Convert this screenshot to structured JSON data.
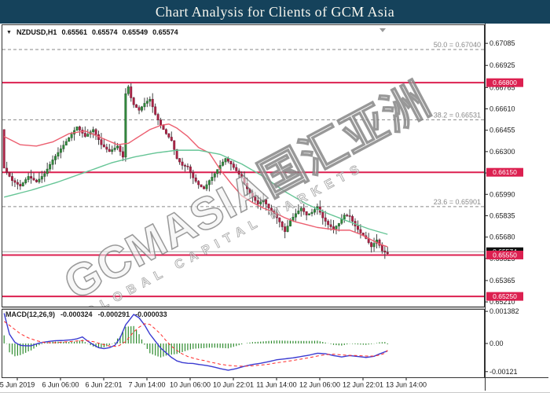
{
  "title_bar": {
    "title": "Chart Analysis for Clients of GCM Asia"
  },
  "symbol_row": {
    "dropdown_icon": "▼",
    "symbol": "NZDUSD,H1",
    "open": "0.65561",
    "high": "0.65574",
    "low": "0.65549",
    "close": "0.65574"
  },
  "watermark": {
    "brand": "GCMASIA国汇亚洲",
    "subtitle": "GLOBAL CAPITAL MARKETS"
  },
  "colors": {
    "titlebar_bg": "#15425b",
    "bull": "#338a3e",
    "bull_stroke": "#1d5b26",
    "bear": "#b02445",
    "bear_stroke": "#701532",
    "wick": "#444444",
    "ma_fast_red": "#ec5f70",
    "ma_slow_green": "#66c596",
    "hline_red": "#dc2050",
    "fib_gray": "#8a8a8a",
    "current_line_gray": "#a8a8a8",
    "macd_main_blue": "#3b3bd1",
    "macd_signal_red": "#ff2a2a",
    "macd_hist_green": "#2e8b2e",
    "badge_current_bg": "#111111",
    "badge_text": "#ffffff",
    "axis_text": "#1a1a1a",
    "border": "#333333"
  },
  "chart_data": [
    {
      "type": "candlestick",
      "title": "NZDUSD hourly price with moving averages, horizontal levels and Fibonacci retracements",
      "y_ticks": [
        "0.67085",
        "0.66925",
        "0.66765",
        "0.66610",
        "0.66455",
        "0.66300",
        "0.66145",
        "0.65990",
        "0.65835",
        "0.65680",
        "0.65525",
        "0.65365",
        "0.65210"
      ],
      "hlines": [
        "0.66800",
        "0.66150",
        "0.65550",
        "0.65250"
      ],
      "current_price": "0.65574",
      "fib_levels": [
        {
          "label": "50.0 = 0.67040",
          "value": 0.6704
        },
        {
          "label": "38.2 = 0.66531",
          "value": 0.66531
        },
        {
          "label": "23.6 = 0.65901",
          "value": 0.65901
        }
      ],
      "x_labels": [
        "5 Jun 2019",
        "6 Jun 06:00",
        "6 Jun 22:01",
        "7 Jun 14:00",
        "10 Jun 06:00",
        "10 Jun 22:01",
        "11 Jun 14:00",
        "12 Jun 06:00",
        "12 Jun 22:01",
        "13 Jun 14:00"
      ],
      "candle_count": 143,
      "first_open": 0.6646,
      "wick_amplitude": 0.0005,
      "close_anchors": [
        [
          0,
          0.6618
        ],
        [
          3,
          0.6609
        ],
        [
          6,
          0.6605
        ],
        [
          9,
          0.6612
        ],
        [
          12,
          0.6608
        ],
        [
          15,
          0.6614
        ],
        [
          18,
          0.6624
        ],
        [
          21,
          0.6632
        ],
        [
          24,
          0.664
        ],
        [
          27,
          0.6648
        ],
        [
          30,
          0.6641
        ],
        [
          33,
          0.6646
        ],
        [
          36,
          0.6635
        ],
        [
          39,
          0.663
        ],
        [
          42,
          0.6634
        ],
        [
          44,
          0.6626
        ],
        [
          45,
          0.6672
        ],
        [
          46,
          0.6677
        ],
        [
          47,
          0.6669
        ],
        [
          48,
          0.6664
        ],
        [
          50,
          0.666
        ],
        [
          52,
          0.6665
        ],
        [
          54,
          0.6668
        ],
        [
          56,
          0.6657
        ],
        [
          58,
          0.6649
        ],
        [
          60,
          0.6643
        ],
        [
          62,
          0.6638
        ],
        [
          64,
          0.6625
        ],
        [
          66,
          0.662
        ],
        [
          68,
          0.6619
        ],
        [
          70,
          0.6611
        ],
        [
          72,
          0.6606
        ],
        [
          74,
          0.6603
        ],
        [
          76,
          0.6609
        ],
        [
          78,
          0.6614
        ],
        [
          80,
          0.662
        ],
        [
          82,
          0.6625
        ],
        [
          84,
          0.6621
        ],
        [
          86,
          0.6616
        ],
        [
          88,
          0.6611
        ],
        [
          90,
          0.6603
        ],
        [
          92,
          0.6597
        ],
        [
          94,
          0.6592
        ],
        [
          96,
          0.6595
        ],
        [
          98,
          0.6589
        ],
        [
          100,
          0.6585
        ],
        [
          102,
          0.6579
        ],
        [
          104,
          0.6572
        ],
        [
          106,
          0.658
        ],
        [
          108,
          0.6585
        ],
        [
          110,
          0.6589
        ],
        [
          112,
          0.6584
        ],
        [
          114,
          0.6586
        ],
        [
          116,
          0.659
        ],
        [
          118,
          0.6582
        ],
        [
          120,
          0.6577
        ],
        [
          122,
          0.6574
        ],
        [
          124,
          0.6578
        ],
        [
          126,
          0.6584
        ],
        [
          128,
          0.6583
        ],
        [
          130,
          0.6576
        ],
        [
          132,
          0.6571
        ],
        [
          134,
          0.6567
        ],
        [
          136,
          0.6561
        ],
        [
          138,
          0.6566
        ],
        [
          140,
          0.6558
        ],
        [
          142,
          0.6556
        ]
      ],
      "ma_fast_anchors": [
        [
          0,
          0.6641
        ],
        [
          6,
          0.6635
        ],
        [
          12,
          0.6634
        ],
        [
          18,
          0.6637
        ],
        [
          24,
          0.6643
        ],
        [
          30,
          0.6645
        ],
        [
          36,
          0.664
        ],
        [
          42,
          0.6635
        ],
        [
          46,
          0.6636
        ],
        [
          50,
          0.6641
        ],
        [
          54,
          0.6646
        ],
        [
          58,
          0.6649
        ],
        [
          61,
          0.665
        ],
        [
          64,
          0.6647
        ],
        [
          68,
          0.6641
        ],
        [
          72,
          0.6633
        ],
        [
          76,
          0.6629
        ],
        [
          80,
          0.6617
        ],
        [
          84,
          0.6607
        ],
        [
          88,
          0.6598
        ],
        [
          92,
          0.6593
        ],
        [
          96,
          0.6589
        ],
        [
          100,
          0.6586
        ],
        [
          104,
          0.6582
        ],
        [
          108,
          0.6579
        ],
        [
          112,
          0.6577
        ],
        [
          116,
          0.6575
        ],
        [
          120,
          0.6574
        ],
        [
          124,
          0.6573
        ],
        [
          128,
          0.6573
        ],
        [
          132,
          0.657
        ],
        [
          136,
          0.6566
        ],
        [
          139,
          0.6563
        ],
        [
          142,
          0.6561
        ]
      ],
      "ma_slow_anchors": [
        [
          0,
          0.6597
        ],
        [
          10,
          0.6602
        ],
        [
          20,
          0.6608
        ],
        [
          30,
          0.6615
        ],
        [
          40,
          0.6622
        ],
        [
          48,
          0.6626
        ],
        [
          56,
          0.6629
        ],
        [
          64,
          0.6631
        ],
        [
          72,
          0.6631
        ],
        [
          80,
          0.6628
        ],
        [
          88,
          0.6621
        ],
        [
          96,
          0.6612
        ],
        [
          104,
          0.6601
        ],
        [
          112,
          0.6592
        ],
        [
          120,
          0.6585
        ],
        [
          128,
          0.6579
        ],
        [
          135,
          0.6574
        ],
        [
          142,
          0.657
        ]
      ]
    },
    {
      "type": "line+histogram",
      "label": "MACD(12,26,9)",
      "values": {
        "main": "-0.000324",
        "signal": "-0.000291",
        "histogram": "-0.000033"
      },
      "y_ticks": [
        "0.001382",
        "0.00",
        "-0.00121"
      ],
      "main_anchors": [
        [
          0,
          0.0013
        ],
        [
          2,
          0.0004
        ],
        [
          4,
          5e-05
        ],
        [
          6,
          -8e-05
        ],
        [
          8,
          -0.0001
        ],
        [
          10,
          -0.0001
        ],
        [
          13,
          2e-05
        ],
        [
          16,
          8e-05
        ],
        [
          19,
          0.00012
        ],
        [
          22,
          0.00013
        ],
        [
          25,
          0.00016
        ],
        [
          27,
          0.0002
        ],
        [
          29,
          0.00028
        ],
        [
          31,
          0.0001
        ],
        [
          33,
          -5e-05
        ],
        [
          35,
          -0.00018
        ],
        [
          37,
          -0.00022
        ],
        [
          39,
          -0.00018
        ],
        [
          41,
          -8e-05
        ],
        [
          43,
          0.00025
        ],
        [
          45,
          0.0008
        ],
        [
          47,
          0.0011
        ],
        [
          48,
          0.00125
        ],
        [
          50,
          0.0011
        ],
        [
          52,
          0.0008
        ],
        [
          54,
          0.0004
        ],
        [
          56,
          0.0001
        ],
        [
          58,
          -0.0002
        ],
        [
          60,
          -0.0004
        ],
        [
          62,
          -0.0006
        ],
        [
          64,
          -0.00075
        ],
        [
          66,
          -0.00082
        ],
        [
          68,
          -0.00085
        ],
        [
          70,
          -0.00086
        ],
        [
          72,
          -0.0009
        ],
        [
          74,
          -0.00093
        ],
        [
          76,
          -0.00097
        ],
        [
          78,
          -0.00102
        ],
        [
          80,
          -0.00108
        ],
        [
          83,
          -0.00115
        ],
        [
          86,
          -0.00108
        ],
        [
          89,
          -0.00098
        ],
        [
          92,
          -0.0009
        ],
        [
          95,
          -0.00085
        ],
        [
          98,
          -0.00078
        ],
        [
          101,
          -0.0007
        ],
        [
          104,
          -0.00066
        ],
        [
          107,
          -0.00062
        ],
        [
          110,
          -0.00056
        ],
        [
          113,
          -0.0005
        ],
        [
          116,
          -0.00042
        ],
        [
          119,
          -0.00044
        ],
        [
          122,
          -0.00052
        ],
        [
          125,
          -0.00058
        ],
        [
          128,
          -0.00052
        ],
        [
          131,
          -0.00056
        ],
        [
          134,
          -0.0006
        ],
        [
          137,
          -0.00055
        ],
        [
          139,
          -0.00045
        ],
        [
          141,
          -0.00036
        ],
        [
          142,
          -0.000324
        ]
      ],
      "signal_anchors": [
        [
          0,
          0.00095
        ],
        [
          2,
          0.00078
        ],
        [
          4,
          0.0006
        ],
        [
          6,
          0.00042
        ],
        [
          9,
          0.00024
        ],
        [
          12,
          0.00012
        ],
        [
          15,
          4e-05
        ],
        [
          18,
          3e-05
        ],
        [
          21,
          5e-05
        ],
        [
          24,
          8e-05
        ],
        [
          27,
          0.00011
        ],
        [
          30,
          0.00013
        ],
        [
          33,
          8e-05
        ],
        [
          36,
          -2e-05
        ],
        [
          39,
          -0.00011
        ],
        [
          42,
          -0.00013
        ],
        [
          45,
          8e-05
        ],
        [
          48,
          0.0005
        ],
        [
          50,
          0.0007
        ],
        [
          52,
          0.00085
        ],
        [
          54,
          0.00082
        ],
        [
          56,
          0.00062
        ],
        [
          58,
          0.0004
        ],
        [
          60,
          0.00012
        ],
        [
          62,
          -0.00012
        ],
        [
          64,
          -0.0003
        ],
        [
          66,
          -0.00045
        ],
        [
          68,
          -0.00056
        ],
        [
          70,
          -0.00063
        ],
        [
          72,
          -0.00069
        ],
        [
          74,
          -0.00073
        ],
        [
          76,
          -0.00079
        ],
        [
          78,
          -0.00084
        ],
        [
          80,
          -0.00089
        ],
        [
          83,
          -0.00094
        ],
        [
          86,
          -0.00097
        ],
        [
          89,
          -0.00098
        ],
        [
          92,
          -0.00096
        ],
        [
          95,
          -0.00093
        ],
        [
          98,
          -0.00089
        ],
        [
          101,
          -0.00083
        ],
        [
          104,
          -0.00078
        ],
        [
          107,
          -0.00073
        ],
        [
          110,
          -0.00067
        ],
        [
          113,
          -0.00061
        ],
        [
          116,
          -0.00054
        ],
        [
          119,
          -0.00048
        ],
        [
          122,
          -0.00046
        ],
        [
          125,
          -0.00049
        ],
        [
          128,
          -0.00051
        ],
        [
          131,
          -0.00052
        ],
        [
          134,
          -0.00054
        ],
        [
          137,
          -0.00054
        ],
        [
          139,
          -0.0005
        ],
        [
          141,
          -0.00042
        ],
        [
          142,
          -0.000291
        ]
      ]
    }
  ]
}
